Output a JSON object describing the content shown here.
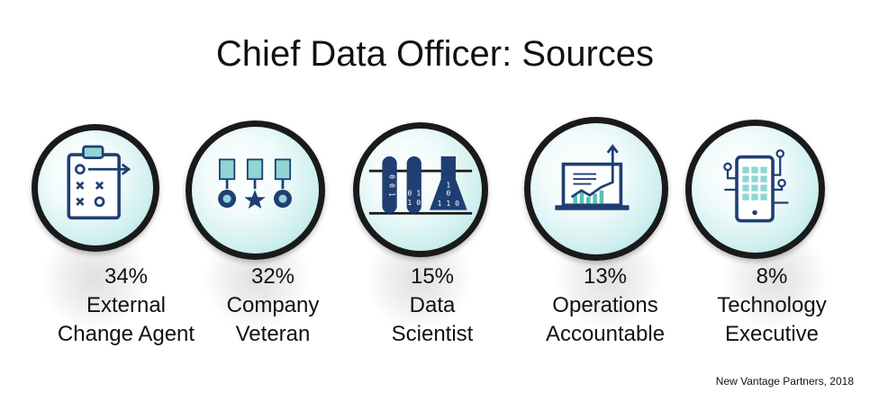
{
  "title": "Chief Data Officer: Sources",
  "source": "New Vantage Partners, 2018",
  "colors": {
    "ring": "#1a1a1a",
    "accent_dark": "#1f3f73",
    "accent_light": "#8fd6d3"
  },
  "items": [
    {
      "percent": "34%",
      "line1": "External",
      "line2": "Change Agent",
      "icon": "clipboard-strategy-icon"
    },
    {
      "percent": "32%",
      "line1": "Company",
      "line2": "Veteran",
      "icon": "medals-icon"
    },
    {
      "percent": "15%",
      "line1": "Data",
      "line2": "Scientist",
      "icon": "test-tubes-binary-icon",
      "tube_digits": [
        "0 0 1",
        "1 1 0",
        "0 1",
        "1 0",
        "1",
        "0",
        "1 1 0"
      ]
    },
    {
      "percent": "13%",
      "line1": "Operations",
      "line2": "Accountable",
      "icon": "laptop-chart-icon"
    },
    {
      "percent": "8%",
      "line1": "Technology",
      "line2": "Executive",
      "icon": "tablet-circuit-icon"
    }
  ]
}
